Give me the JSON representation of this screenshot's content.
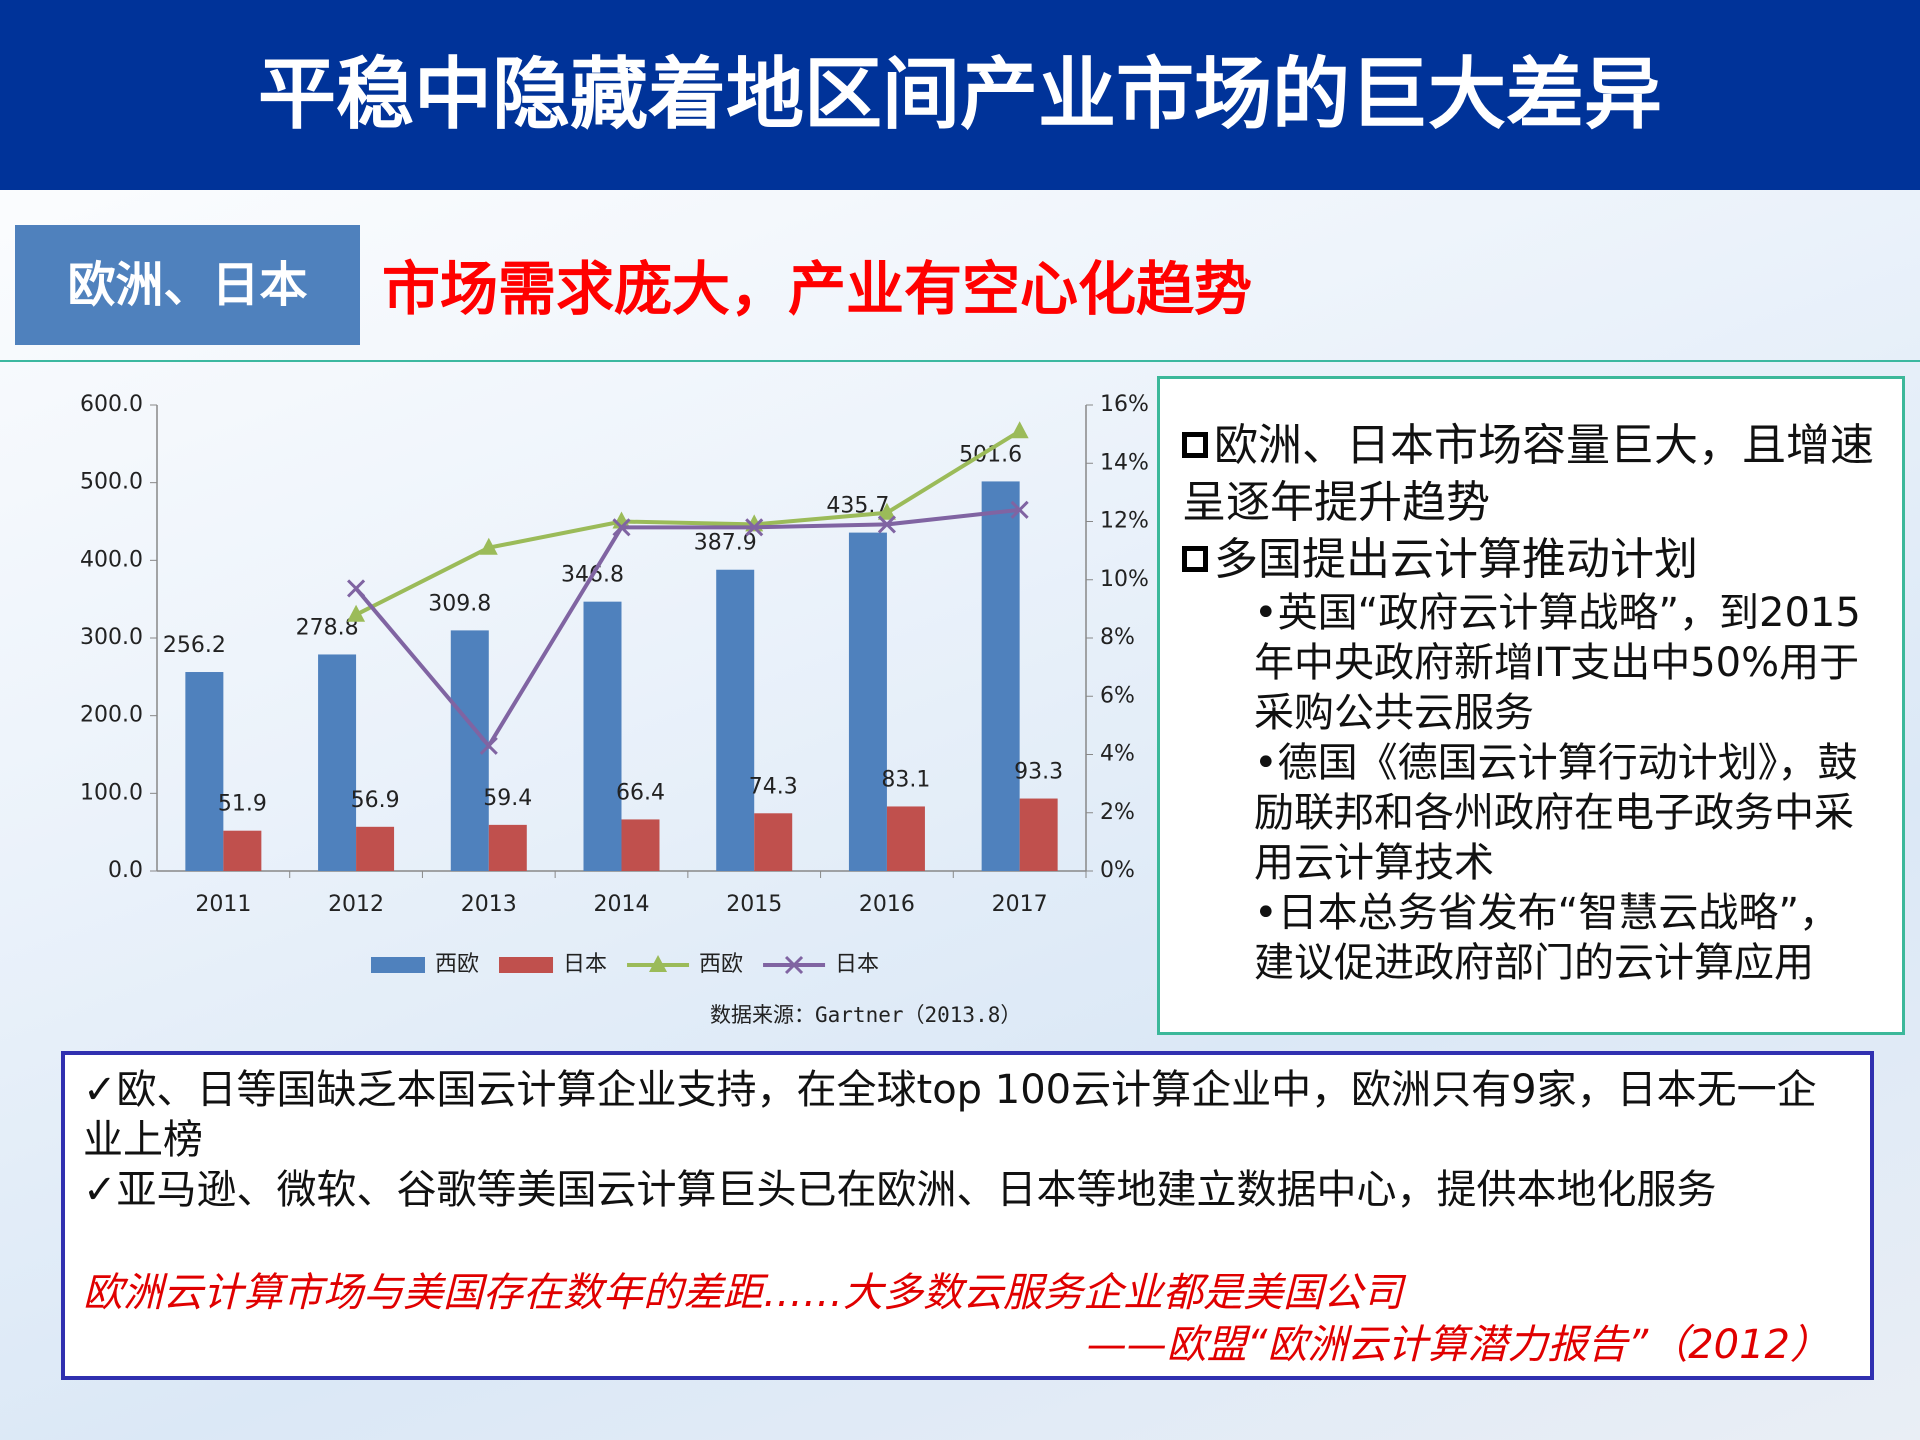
{
  "header": {
    "title": "平稳中隐藏着地区间产业市场的巨大差异"
  },
  "section": {
    "tag": "欧洲、日本",
    "headline": "市场需求庞大，产业有空心化趋势"
  },
  "chart_data": {
    "type": "bar",
    "categories": [
      "2011",
      "2012",
      "2013",
      "2014",
      "2015",
      "2016",
      "2017"
    ],
    "series": [
      {
        "name": "西欧",
        "color": "#4f81bd",
        "type": "bar",
        "values": [
          256.2,
          278.8,
          309.8,
          346.8,
          387.9,
          435.7,
          501.6
        ]
      },
      {
        "name": "日本",
        "color": "#c0504d",
        "type": "bar",
        "values": [
          51.9,
          56.9,
          59.4,
          66.4,
          74.3,
          83.1,
          93.3
        ]
      },
      {
        "name": "西欧",
        "color": "#9bbb59",
        "type": "line",
        "marker": "triangle",
        "axis": "y2",
        "values": [
          null,
          8.8,
          11.1,
          12.0,
          11.9,
          12.3,
          15.1
        ]
      },
      {
        "name": "日本",
        "color": "#8064a2",
        "type": "line",
        "marker": "x",
        "axis": "y2",
        "values": [
          null,
          9.7,
          4.3,
          11.8,
          11.8,
          11.9,
          12.4
        ]
      }
    ],
    "ylim": [
      0,
      600
    ],
    "yticks": [
      {
        "value": 0,
        "label": "0.0"
      },
      {
        "value": 100,
        "label": "100.0"
      },
      {
        "value": 200,
        "label": "200.0"
      },
      {
        "value": 300,
        "label": "300.0"
      },
      {
        "value": 400,
        "label": "400.0"
      },
      {
        "value": 500,
        "label": "500.0"
      },
      {
        "value": 600,
        "label": "600.0"
      }
    ],
    "y2lim": [
      0,
      16
    ],
    "y2ticks": [
      {
        "value": 0,
        "label": "0%"
      },
      {
        "value": 2,
        "label": "2%"
      },
      {
        "value": 4,
        "label": "4%"
      },
      {
        "value": 6,
        "label": "6%"
      },
      {
        "value": 8,
        "label": "8%"
      },
      {
        "value": 10,
        "label": "10%"
      },
      {
        "value": 12,
        "label": "12%"
      },
      {
        "value": 14,
        "label": "14%"
      },
      {
        "value": 16,
        "label": "16%"
      }
    ],
    "grid": false,
    "legend": "bottom",
    "source": "数据来源：Gartner（2013.8）"
  },
  "highlights": {
    "items": [
      {
        "text": "欧洲、日本市场容量巨大，且增速呈逐年提升趋势",
        "subitems": []
      },
      {
        "text": "多国提出云计算推动计划",
        "subitems": [
          "英国“政府云计算战略”，到2015年中央政府新增IT支出中50%用于采购公共云服务",
          "德国《德国云计算行动计划》，鼓励联邦和各州政府在电子政务中采用云计算技术",
          "日本总务省发布“智慧云战略”，建议促进政府部门的云计算应用"
        ]
      }
    ]
  },
  "notes": {
    "items": [
      "欧、日等国缺乏本国云计算企业支持，在全球top 100云计算企业中，欧洲只有9家，日本无一企业上榜",
      "亚马逊、微软、谷歌等美国云计算巨头已在欧洲、日本等地建立数据中心，提供本地化服务"
    ],
    "quote": "欧洲云计算市场与美国存在数年的差距……大多数云服务企业都是美国公司",
    "attribution": "——欧盟“欧洲云计算潜力报告”（2012）"
  }
}
